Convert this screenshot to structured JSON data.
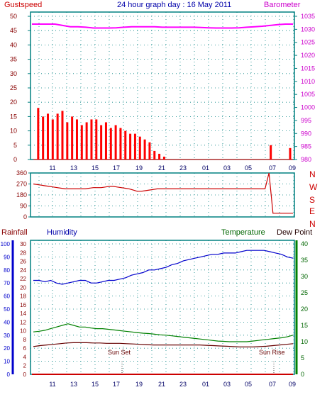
{
  "header": {
    "title": "24 hour graph day : 16 May 2011",
    "left_label": "Gustspeed",
    "right_label": "Barometer"
  },
  "panel2": {
    "compass": [
      "N",
      "W",
      "S",
      "E",
      "N"
    ]
  },
  "panel3": {
    "labels": {
      "rainfall": "Rainfall",
      "humidity": "Humidity",
      "temperature": "Temperature",
      "dewpoint": "Dew Point",
      "sunset": "Sun Set",
      "sunrise": "Sun Rise"
    }
  },
  "colors": {
    "frame": "#008080",
    "grid": "#008080",
    "gust": "#ff0000",
    "wind": "#0000cc",
    "wind_green": "#008000",
    "barometer": "#ff00ff",
    "direction": "#cc0000",
    "humidity": "#0000cc",
    "temperature": "#008000",
    "dewpoint": "#660000",
    "rain": "#cc0000",
    "left_axis_p3": "#0000cc",
    "temp_axis": "#008000"
  },
  "chart_data": [
    {
      "type": "line",
      "x_tick_labels": [
        "11",
        "13",
        "15",
        "17",
        "19",
        "21",
        "23",
        "01",
        "03",
        "05",
        "07",
        "09"
      ],
      "left_axis": {
        "ticks": [
          0,
          5,
          10,
          15,
          20,
          25,
          30,
          35,
          40,
          45,
          50
        ],
        "ylim": [
          0,
          50
        ]
      },
      "right_axis": {
        "ticks": [
          980,
          985,
          990,
          995,
          1000,
          1005,
          1010,
          1015,
          1020,
          1025,
          1030,
          1035
        ],
        "ylim": [
          980,
          1035
        ]
      },
      "series": [
        {
          "name": "Gustspeed",
          "y": [
            0,
            18,
            15,
            16,
            14,
            16,
            17,
            13,
            15,
            14,
            12,
            13,
            14,
            14,
            12,
            13,
            11,
            12,
            11,
            10,
            9,
            9,
            8,
            7,
            6,
            3,
            2,
            1,
            0,
            0,
            0,
            0,
            0,
            0,
            0,
            0,
            0,
            0,
            0,
            0,
            0,
            0,
            0,
            0,
            0,
            0,
            0,
            0,
            0,
            5,
            0,
            0,
            0,
            4
          ]
        },
        {
          "name": "Barometer",
          "y": [
            1032,
            1032,
            1032,
            1032,
            1031.5,
            1031,
            1031,
            1030.8,
            1030.5,
            1030.5,
            1030.5,
            1030.6,
            1030.8,
            1031,
            1031,
            1031,
            1031,
            1030.8,
            1030.8,
            1030.8,
            1030.8,
            1030.8,
            1030.7,
            1030.6,
            1030.5,
            1030.5,
            1030.5,
            1030.6,
            1030.8,
            1031,
            1031.2,
            1031.5,
            1031.8,
            1032,
            1032
          ]
        }
      ]
    },
    {
      "type": "line",
      "left_axis": {
        "ticks": [
          0,
          90,
          180,
          270,
          360
        ],
        "ylim": [
          0,
          360
        ]
      },
      "series": [
        {
          "name": "Wind Direction",
          "y": [
            270,
            265,
            260,
            255,
            250,
            245,
            240,
            235,
            230,
            230,
            230,
            230,
            230,
            230,
            235,
            240,
            240,
            240,
            245,
            250,
            250,
            245,
            240,
            235,
            230,
            220,
            210,
            210,
            215,
            220,
            225,
            230,
            230,
            230,
            230,
            230,
            230,
            230,
            230,
            230,
            230,
            230,
            230,
            230,
            230,
            230,
            230,
            230,
            230,
            230,
            230,
            230,
            230,
            230,
            230,
            230,
            230,
            230,
            230,
            360,
            30,
            30,
            30,
            30,
            30,
            30
          ]
        }
      ]
    },
    {
      "type": "line",
      "left_axis_rain": {
        "ticks": [
          0,
          10,
          20,
          30,
          40,
          50,
          60,
          70,
          80,
          90,
          100
        ],
        "ylim": [
          0,
          100
        ]
      },
      "left_axis_humidity": {
        "ticks": [
          0,
          2,
          4,
          6,
          8,
          10,
          12,
          14,
          16,
          18,
          20,
          22,
          24,
          26,
          28,
          30
        ],
        "ylim": [
          0,
          30
        ]
      },
      "right_axis_temp": {
        "ticks": [
          0,
          5,
          10,
          15,
          20,
          25,
          30,
          35,
          40
        ],
        "ylim": [
          0,
          40
        ]
      },
      "series": [
        {
          "name": "Humidity",
          "y": [
            72,
            72,
            71,
            72,
            70,
            69,
            70,
            71,
            72,
            72,
            70,
            70,
            71,
            72,
            72,
            73,
            74,
            76,
            77,
            78,
            80,
            80,
            81,
            82,
            84,
            85,
            87,
            88,
            89,
            90,
            91,
            92,
            92,
            93,
            93,
            93,
            94,
            95,
            95,
            95,
            95,
            94,
            93,
            92,
            90,
            89
          ]
        },
        {
          "name": "Temperature",
          "y": [
            13,
            13.2,
            13.5,
            14,
            14.5,
            15,
            15.5,
            15,
            14.5,
            14.5,
            14.2,
            14,
            14,
            13.8,
            13.6,
            13.4,
            13.2,
            13,
            12.8,
            12.6,
            12.5,
            12.3,
            12.1,
            12,
            11.8,
            11.6,
            11.4,
            11.2,
            11,
            10.8,
            10.6,
            10.4,
            10.2,
            10.1,
            10,
            10,
            10,
            10,
            10.2,
            10.4,
            10.6,
            10.8,
            11,
            11.2,
            11.5,
            12
          ]
        },
        {
          "name": "Dew Point",
          "y": [
            8.5,
            8.8,
            9,
            9.2,
            9.4,
            9.6,
            9.7,
            9.7,
            9.7,
            9.6,
            9.6,
            9.5,
            9.5,
            9.5,
            9.4,
            9.3,
            9.2,
            9.1,
            9,
            9,
            9,
            9,
            9,
            9,
            9,
            9,
            8.9,
            8.8,
            8.7,
            8.6,
            8.5,
            8.4,
            8.4,
            8.4,
            8.5,
            8.6,
            8.8,
            9,
            9.2,
            9.4
          ]
        },
        {
          "name": "Rainfall",
          "y": [
            0,
            0,
            0,
            0,
            0,
            0,
            0,
            0,
            0,
            0
          ]
        }
      ]
    }
  ]
}
